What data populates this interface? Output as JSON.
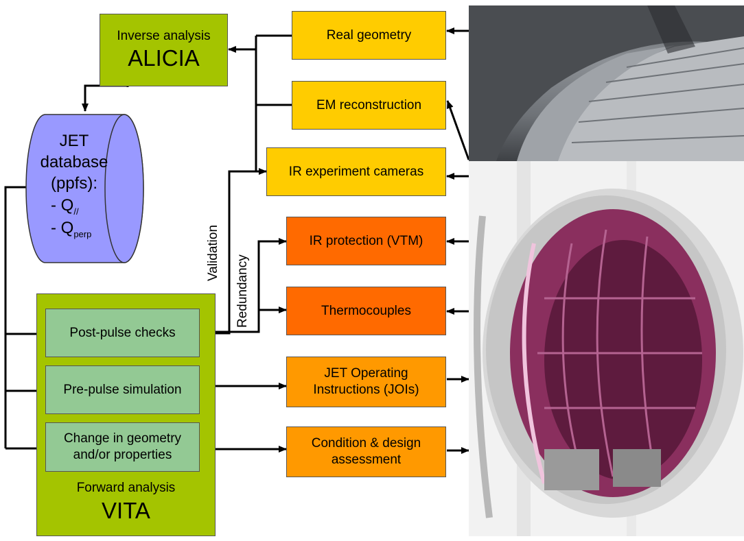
{
  "alicia": {
    "line1": "Inverse analysis",
    "line2": "ALICIA"
  },
  "vita": {
    "line1": "Forward analysis",
    "line2": "VITA"
  },
  "database": {
    "line1": "JET",
    "line2": "database",
    "line3": "(ppfs):",
    "q1_prefix": "- Q",
    "q1_sub": "//",
    "q2_prefix": "- Q",
    "q2_sub": "perp"
  },
  "checks": {
    "post_pulse": "Post-pulse checks",
    "pre_pulse": "Pre-pulse simulation",
    "change_line1": "Change in geometry",
    "change_line2": "and/or properties"
  },
  "outputs": {
    "real_geometry": "Real geometry",
    "em_reconstruction": "EM reconstruction",
    "ir_cameras": "IR experiment cameras",
    "ir_protection": "IR protection (VTM)",
    "thermocouples": "Thermocouples",
    "joi_line1": "JET Operating",
    "joi_line2": "Instructions (JOIs)",
    "condition_line1": "Condition & design",
    "condition_line2": "assessment"
  },
  "annotations": {
    "validation": "Validation",
    "redundancy": "Redundancy"
  },
  "colors": {
    "green_dark": "#a4c400",
    "green_light": "#93c994",
    "yellow": "#ffcc00",
    "orange_dark": "#ff6a00",
    "orange": "#ff9900",
    "database": "#9999ff"
  }
}
